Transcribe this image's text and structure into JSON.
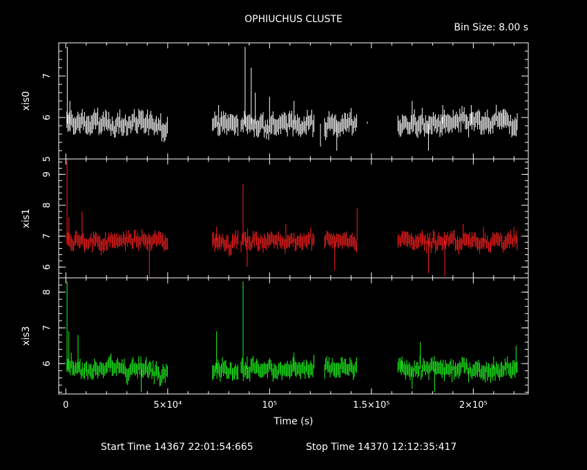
{
  "chart_data": {
    "type": "line",
    "title": "OPHIUCHUS CLUSTE",
    "bin_size": "Bin Size: 8.00 s",
    "xlabel": "Time (s)",
    "xlim": [
      -3500,
      227000
    ],
    "x_ticks": [
      {
        "value": 0,
        "label": "0"
      },
      {
        "value": 50000,
        "label": "5×10⁴"
      },
      {
        "value": 100000,
        "label": "10⁵"
      },
      {
        "value": 150000,
        "label": "1.5×10⁵"
      },
      {
        "value": 200000,
        "label": "2×10⁵"
      }
    ],
    "footer": {
      "start": "Start Time 14367 22:01:54:665",
      "stop": "Stop Time 14370 12:12:35:417"
    },
    "panels": [
      {
        "name": "xis0",
        "color": "#ffffff",
        "ylim": [
          5.0,
          7.8
        ],
        "y_ticks": [
          {
            "value": 5,
            "label": "5"
          },
          {
            "value": 6,
            "label": "6"
          },
          {
            "value": 7,
            "label": "7"
          }
        ],
        "baseline": 5.85,
        "noise": 0.15,
        "segments": [
          [
            500,
            50000
          ],
          [
            72000,
            85000
          ],
          [
            86000,
            122000
          ],
          [
            127000,
            143000
          ],
          [
            163000,
            222000
          ]
        ],
        "spikes": [
          [
            700,
            7.7
          ],
          [
            2000,
            6.4
          ],
          [
            75000,
            6.3
          ],
          [
            88000,
            7.7
          ],
          [
            91000,
            7.2
          ],
          [
            93000,
            6.6
          ],
          [
            100000,
            6.5
          ],
          [
            112000,
            6.4
          ],
          [
            125000,
            5.3
          ],
          [
            133000,
            5.2
          ],
          [
            148000,
            5.9
          ],
          [
            170000,
            6.4
          ],
          [
            178000,
            5.2
          ],
          [
            185000,
            6.3
          ],
          [
            199000,
            6.3
          ],
          [
            215000,
            6.2
          ]
        ]
      },
      {
        "name": "xis1",
        "color": "#ff2020",
        "ylim": [
          5.65,
          9.5
        ],
        "y_ticks": [
          {
            "value": 6,
            "label": "6"
          },
          {
            "value": 7,
            "label": "7"
          },
          {
            "value": 8,
            "label": "8"
          },
          {
            "value": 9,
            "label": "9"
          }
        ],
        "baseline": 6.85,
        "noise": 0.16,
        "segments": [
          [
            500,
            50000
          ],
          [
            72000,
            85000
          ],
          [
            86000,
            122000
          ],
          [
            127000,
            143000
          ],
          [
            163000,
            222000
          ]
        ],
        "spikes": [
          [
            600,
            9.5
          ],
          [
            1500,
            7.6
          ],
          [
            8000,
            7.8
          ],
          [
            41000,
            5.7
          ],
          [
            74000,
            7.3
          ],
          [
            87000,
            8.7
          ],
          [
            89000,
            6.0
          ],
          [
            108000,
            7.4
          ],
          [
            132000,
            5.9
          ],
          [
            143000,
            7.9
          ],
          [
            175000,
            7.2
          ],
          [
            178000,
            5.8
          ],
          [
            186000,
            5.7
          ],
          [
            195000,
            7.4
          ],
          [
            205000,
            7.3
          ]
        ]
      },
      {
        "name": "xis3",
        "color": "#20ff20",
        "ylim": [
          5.15,
          8.4
        ],
        "y_ticks": [
          {
            "value": 6,
            "label": "6"
          },
          {
            "value": 7,
            "label": "7"
          },
          {
            "value": 8,
            "label": "8"
          }
        ],
        "baseline": 5.85,
        "noise": 0.15,
        "segments": [
          [
            500,
            50000
          ],
          [
            72000,
            85000
          ],
          [
            86000,
            122000
          ],
          [
            127000,
            143000
          ],
          [
            163000,
            222000
          ]
        ],
        "spikes": [
          [
            600,
            8.3
          ],
          [
            1500,
            6.9
          ],
          [
            6000,
            6.8
          ],
          [
            37000,
            5.2
          ],
          [
            74000,
            6.9
          ],
          [
            87000,
            8.3
          ],
          [
            89000,
            6.2
          ],
          [
            112000,
            6.3
          ],
          [
            165000,
            6.2
          ],
          [
            170000,
            5.3
          ],
          [
            174000,
            6.6
          ],
          [
            181000,
            5.2
          ],
          [
            210000,
            6.2
          ],
          [
            221000,
            6.5
          ]
        ]
      }
    ]
  }
}
